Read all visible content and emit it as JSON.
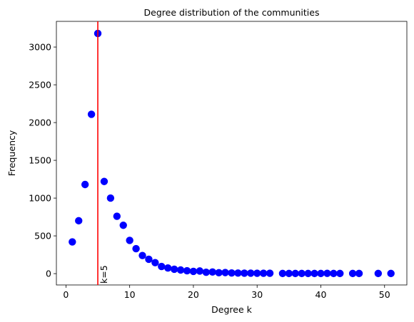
{
  "chart_data": {
    "type": "scatter",
    "title": "Degree distribution of the communities",
    "xlabel": "Degree k",
    "ylabel": "Frequency",
    "xlim": [
      -1.5,
      53.5
    ],
    "ylim": [
      -150,
      3340
    ],
    "xticks": [
      0,
      10,
      20,
      30,
      40,
      50
    ],
    "yticks": [
      0,
      500,
      1000,
      1500,
      2000,
      2500,
      3000
    ],
    "grid": false,
    "marker_color": "#0000ff",
    "series": [
      {
        "x": [
          1,
          2,
          3,
          4,
          5,
          6,
          7,
          8,
          9,
          10,
          11,
          12,
          13,
          14,
          15,
          16,
          17,
          18,
          19,
          20,
          21,
          22,
          23,
          24,
          25,
          26,
          27,
          28,
          29,
          30,
          31,
          32,
          34,
          35,
          36,
          37,
          38,
          39,
          40,
          41,
          42,
          43,
          45,
          46,
          49,
          51
        ],
        "y": [
          420,
          700,
          1180,
          2110,
          3180,
          1220,
          1000,
          760,
          640,
          440,
          330,
          240,
          190,
          145,
          95,
          75,
          58,
          48,
          38,
          30,
          35,
          18,
          22,
          12,
          14,
          9,
          7,
          6,
          6,
          5,
          5,
          5,
          2,
          2,
          2,
          2,
          2,
          2,
          2,
          4,
          2,
          2,
          2,
          2,
          2,
          2
        ]
      }
    ],
    "annotations": [
      {
        "type": "vline",
        "x": 5,
        "color": "#ff0000",
        "label": "k=5"
      }
    ]
  }
}
